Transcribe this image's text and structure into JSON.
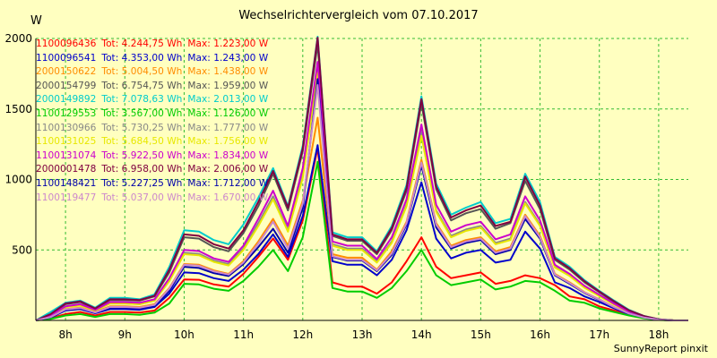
{
  "chart_data": {
    "type": "line",
    "title": "Wechselrichtervergleich vom 07.10.2017",
    "ylabel": "W",
    "footer": "SunnyReport pinxit",
    "ylim": [
      0,
      2000
    ],
    "xlim": [
      7.5,
      18.5
    ],
    "yticks": [
      {
        "value": 500,
        "label": "500"
      },
      {
        "value": 1000,
        "label": "1000"
      },
      {
        "value": 1500,
        "label": "1500"
      },
      {
        "value": 2000,
        "label": "2000"
      }
    ],
    "xticks": [
      {
        "value": 8,
        "label": "8h"
      },
      {
        "value": 9,
        "label": "9h"
      },
      {
        "value": 10,
        "label": "10h"
      },
      {
        "value": 11,
        "label": "11h"
      },
      {
        "value": 12,
        "label": "12h"
      },
      {
        "value": 13,
        "label": "13h"
      },
      {
        "value": 14,
        "label": "14h"
      },
      {
        "value": 15,
        "label": "15h"
      },
      {
        "value": 16,
        "label": "16h"
      },
      {
        "value": 17,
        "label": "17h"
      },
      {
        "value": 18,
        "label": "18h"
      }
    ],
    "grid": true,
    "legend_position": "top-left",
    "x": [
      7.5,
      7.75,
      8.0,
      8.25,
      8.5,
      8.75,
      9.0,
      9.25,
      9.5,
      9.75,
      10.0,
      10.25,
      10.5,
      10.75,
      11.0,
      11.25,
      11.5,
      11.75,
      12.0,
      12.25,
      12.5,
      12.75,
      13.0,
      13.25,
      13.5,
      13.75,
      14.0,
      14.25,
      14.5,
      14.75,
      15.0,
      15.25,
      15.5,
      15.75,
      16.0,
      16.25,
      16.5,
      16.75,
      17.0,
      17.25,
      17.5,
      17.75,
      18.0,
      18.25,
      18.5
    ],
    "series": [
      {
        "serial": "1100096436",
        "tot": "Tot: 4.244,75 Wh",
        "max": "Max: 1.223,00 W",
        "color": "#ff0000",
        "values": [
          0,
          15,
          45,
          60,
          35,
          60,
          60,
          55,
          70,
          160,
          290,
          288,
          255,
          240,
          330,
          450,
          580,
          430,
          710,
          1223,
          270,
          240,
          240,
          190,
          270,
          420,
          590,
          380,
          300,
          320,
          340,
          260,
          280,
          320,
          300,
          250,
          170,
          150,
          100,
          70,
          40,
          20,
          5,
          0,
          0
        ]
      },
      {
        "serial": "1100096541",
        "tot": "Tot: 4.353,00 Wh",
        "max": "Max: 1.243,00 W",
        "color": "#0000cc",
        "values": [
          0,
          20,
          70,
          80,
          50,
          80,
          80,
          75,
          95,
          190,
          340,
          335,
          300,
          280,
          360,
          470,
          610,
          450,
          740,
          1243,
          420,
          395,
          395,
          320,
          430,
          640,
          980,
          580,
          440,
          480,
          500,
          410,
          430,
          630,
          510,
          270,
          230,
          170,
          130,
          85,
          45,
          20,
          5,
          0,
          0
        ]
      },
      {
        "serial": "2000150622",
        "tot": "Tot: 5.004,50 Wh",
        "max": "Max: 1.438,00 W",
        "color": "#ff8c00",
        "values": [
          0,
          25,
          80,
          90,
          60,
          100,
          100,
          95,
          115,
          230,
          400,
          395,
          355,
          330,
          420,
          560,
          720,
          530,
          850,
          1438,
          470,
          445,
          445,
          360,
          490,
          700,
          1140,
          690,
          530,
          570,
          590,
          490,
          520,
          750,
          600,
          330,
          270,
          200,
          150,
          95,
          50,
          22,
          5,
          0,
          0
        ]
      },
      {
        "serial": "2000154799",
        "tot": "Tot: 6.754,75 Wh",
        "max": "Max: 1.959,00 W",
        "color": "#555555",
        "values": [
          0,
          40,
          115,
          130,
          80,
          145,
          145,
          140,
          170,
          340,
          590,
          580,
          520,
          490,
          620,
          810,
          1040,
          780,
          1200,
          1959,
          600,
          565,
          565,
          470,
          640,
          920,
          1540,
          930,
          710,
          760,
          790,
          650,
          690,
          990,
          790,
          430,
          360,
          270,
          200,
          130,
          70,
          30,
          8,
          0,
          0
        ]
      },
      {
        "serial": "2000149892",
        "tot": "Tot: 7.078,63 Wh",
        "max": "Max: 2.013,00 W",
        "color": "#00cccc",
        "values": [
          0,
          60,
          125,
          140,
          90,
          160,
          160,
          150,
          185,
          380,
          640,
          630,
          570,
          540,
          680,
          870,
          1080,
          810,
          1240,
          2013,
          625,
          590,
          590,
          490,
          670,
          960,
          1590,
          970,
          750,
          800,
          840,
          690,
          720,
          1040,
          840,
          450,
          380,
          285,
          210,
          140,
          75,
          32,
          8,
          0,
          0
        ]
      },
      {
        "serial": "1100129553",
        "tot": "Tot: 3.567,00 Wh",
        "max": "Max: 1.126,00 W",
        "color": "#00cc00",
        "values": [
          0,
          10,
          35,
          45,
          25,
          45,
          45,
          40,
          55,
          120,
          260,
          255,
          225,
          210,
          280,
          380,
          500,
          350,
          590,
          1126,
          230,
          205,
          205,
          160,
          230,
          350,
          500,
          320,
          250,
          270,
          290,
          220,
          240,
          280,
          270,
          210,
          140,
          125,
          85,
          60,
          35,
          15,
          3,
          0,
          0
        ]
      },
      {
        "serial": "1100130966",
        "tot": "Tot: 5.730,25 Wh",
        "max": "Max: 1.777,00 W",
        "color": "#888888",
        "values": [
          0,
          30,
          95,
          110,
          70,
          120,
          120,
          115,
          140,
          280,
          480,
          472,
          425,
          400,
          510,
          690,
          880,
          640,
          1030,
          1777,
          540,
          510,
          510,
          420,
          560,
          820,
          1340,
          780,
          600,
          645,
          670,
          550,
          580,
          840,
          680,
          380,
          320,
          235,
          175,
          115,
          60,
          25,
          6,
          0,
          0
        ]
      },
      {
        "serial": "1100131025",
        "tot": "Tot: 5.684,50 Wh",
        "max": "Max: 1.756,00 W",
        "color": "#e8e800",
        "values": [
          0,
          30,
          95,
          105,
          70,
          120,
          120,
          115,
          140,
          280,
          470,
          462,
          415,
          390,
          500,
          670,
          860,
          630,
          1010,
          1756,
          530,
          500,
          500,
          410,
          550,
          810,
          1310,
          770,
          590,
          635,
          660,
          540,
          570,
          830,
          670,
          375,
          315,
          232,
          172,
          112,
          58,
          25,
          6,
          0,
          0
        ]
      },
      {
        "serial": "1100131074",
        "tot": "Tot: 5.922,50 Wh",
        "max": "Max: 1.834,00 W",
        "color": "#cc00cc",
        "values": [
          0,
          35,
          100,
          115,
          75,
          130,
          130,
          125,
          150,
          300,
          500,
          492,
          440,
          415,
          530,
          720,
          920,
          670,
          1080,
          1834,
          560,
          530,
          530,
          435,
          590,
          860,
          1390,
          820,
          630,
          675,
          700,
          575,
          610,
          880,
          710,
          395,
          330,
          245,
          182,
          118,
          62,
          26,
          6,
          0,
          0
        ]
      },
      {
        "serial": "2000001478",
        "tot": "Tot: 6.958,00 Wh",
        "max": "Max: 2.006,00 W",
        "color": "#800040",
        "values": [
          0,
          45,
          120,
          135,
          85,
          150,
          150,
          145,
          175,
          360,
          610,
          600,
          540,
          510,
          640,
          840,
          1060,
          800,
          1220,
          2006,
          610,
          575,
          575,
          480,
          655,
          940,
          1570,
          950,
          730,
          780,
          815,
          670,
          700,
          1020,
          815,
          440,
          370,
          278,
          205,
          135,
          72,
          31,
          8,
          0,
          0
        ]
      },
      {
        "serial": "1100148421",
        "tot": "Tot: 5.227,25 Wh",
        "max": "Max: 1.712,00 W",
        "color": "#0000aa",
        "values": [
          0,
          22,
          75,
          85,
          55,
          90,
          90,
          85,
          105,
          210,
          380,
          372,
          335,
          315,
          400,
          520,
          650,
          480,
          800,
          1712,
          450,
          425,
          425,
          350,
          465,
          680,
          1100,
          660,
          510,
          550,
          570,
          470,
          500,
          720,
          580,
          320,
          260,
          195,
          145,
          92,
          48,
          21,
          5,
          0,
          0
        ]
      },
      {
        "serial": "1100119477",
        "tot": "Tot: 5.037,00 Wh",
        "max": "Max: 1.670,00 W",
        "color": "#cc88cc",
        "values": [
          0,
          24,
          78,
          88,
          56,
          95,
          95,
          90,
          110,
          225,
          395,
          388,
          348,
          325,
          410,
          545,
          700,
          510,
          830,
          1670,
          455,
          430,
          430,
          355,
          475,
          690,
          1120,
          680,
          520,
          560,
          580,
          480,
          510,
          740,
          590,
          325,
          265,
          198,
          148,
          94,
          49,
          21,
          5,
          0,
          0
        ]
      }
    ]
  }
}
